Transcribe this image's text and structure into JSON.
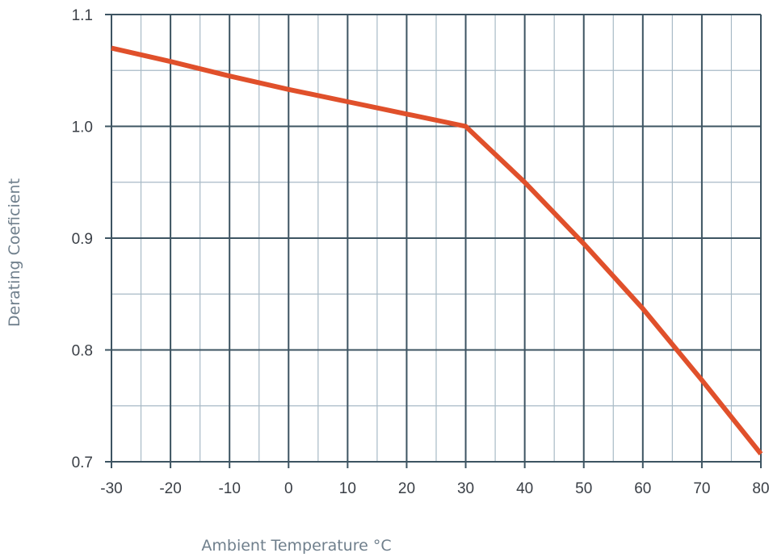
{
  "chart_data": {
    "type": "line",
    "title": "",
    "xlabel": "Ambient Temperature °C",
    "ylabel": "Derating Coeficient",
    "x_tick_labels": [
      "-30",
      "-20",
      "-10",
      "0",
      "10",
      "20",
      "30",
      "40",
      "50",
      "60",
      "70",
      "80"
    ],
    "y_ticks": [
      0.7,
      0.8,
      0.9,
      1.0,
      1.1
    ],
    "y_tick_labels": [
      "0.7",
      "0.8",
      "0.9",
      "1.0",
      "1.1"
    ],
    "ylim": [
      0.7,
      1.1
    ],
    "grid": true,
    "legend": "none",
    "series": [
      {
        "x": [
          -30,
          -20,
          -10,
          0,
          10,
          20,
          30,
          40,
          50,
          60,
          70,
          80
        ],
        "y": [
          1.07,
          1.058,
          1.045,
          1.033,
          1.022,
          1.011,
          1.0,
          0.95,
          0.895,
          0.837,
          0.773,
          0.707
        ]
      }
    ],
    "colors": {
      "line": "#e0502b",
      "grid_major": "#3d5462",
      "grid_minor": "#a8bac6",
      "tick_text": "#3a3f46",
      "axis_title": "#6f7f8c"
    }
  }
}
